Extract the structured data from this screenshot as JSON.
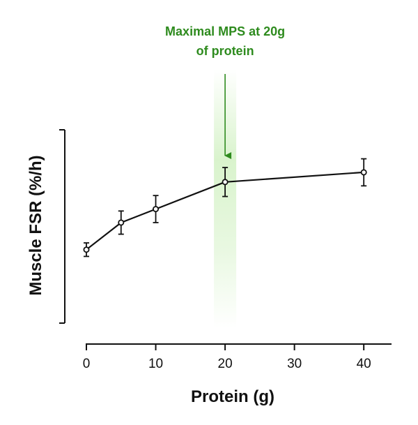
{
  "chart_data": {
    "type": "line",
    "x": [
      0,
      5,
      10,
      20,
      40
    ],
    "y": [
      0.38,
      0.52,
      0.59,
      0.73,
      0.78
    ],
    "error": [
      0.035,
      0.06,
      0.07,
      0.075,
      0.07
    ],
    "xlabel": "Protein (g)",
    "ylabel": "Muscle FSR (%/h)",
    "xticks": [
      "0",
      "10",
      "20",
      "30",
      "40"
    ],
    "xtick_values": [
      0,
      10,
      20,
      30,
      40
    ],
    "xlim": [
      0,
      44
    ],
    "ylim": [
      0,
      1
    ],
    "y_tick_labels_shown": false,
    "grid": false,
    "marker": "open-circle",
    "line_color": "#111111",
    "annotation": {
      "lines": [
        "Maximal MPS at 20g",
        "of protein"
      ],
      "x": 20,
      "color": "#2e8b1e",
      "band_color": "#9be07a"
    }
  }
}
